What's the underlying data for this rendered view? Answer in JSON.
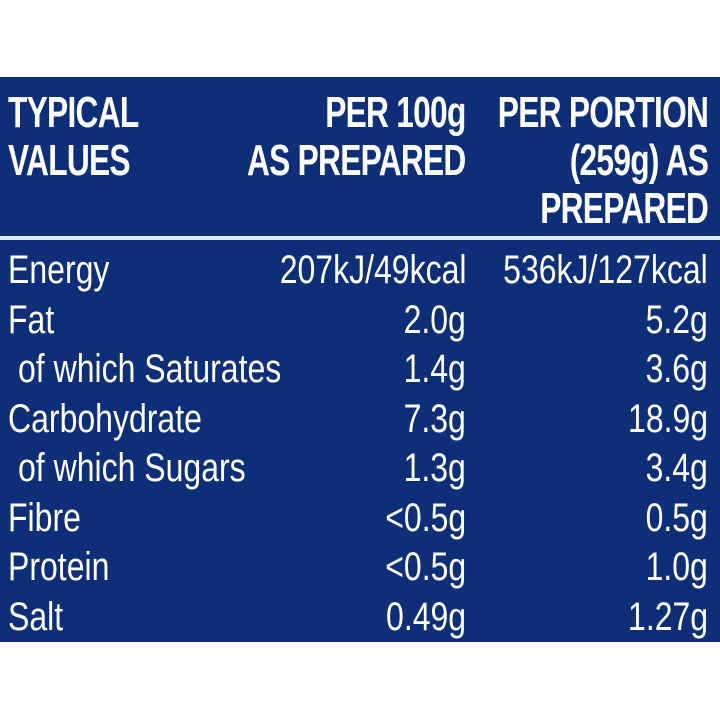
{
  "header": {
    "col1": [
      "TYPICAL",
      "VALUES"
    ],
    "col2": [
      "PER 100g",
      "AS PREPARED"
    ],
    "col3": [
      "PER PORTION",
      "(259g) AS",
      "PREPARED"
    ]
  },
  "rows": [
    {
      "label": "Energy",
      "per100g": "207kJ/49kcal",
      "perPortion": "536kJ/127kcal"
    },
    {
      "label": "Fat",
      "per100g": "2.0g",
      "perPortion": "5.2g"
    },
    {
      "label": "of which Saturates",
      "per100g": "1.4g",
      "perPortion": "3.6g"
    },
    {
      "label": "Carbohydrate",
      "per100g": "7.3g",
      "perPortion": "18.9g"
    },
    {
      "label": "of which Sugars",
      "per100g": "1.3g",
      "perPortion": "3.4g"
    },
    {
      "label": "Fibre",
      "per100g": "<0.5g",
      "perPortion": "0.5g"
    },
    {
      "label": "Protein",
      "per100g": "<0.5g",
      "perPortion": "1.0g"
    },
    {
      "label": "Salt",
      "per100g": "0.49g",
      "perPortion": "1.27g"
    }
  ],
  "colors": {
    "panel": "#0e2f78",
    "text": "#ffffff"
  }
}
